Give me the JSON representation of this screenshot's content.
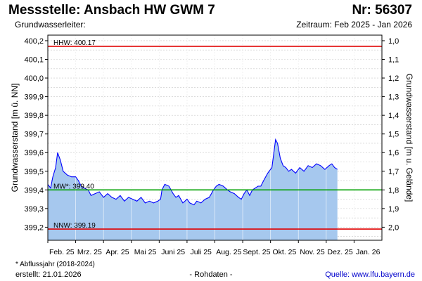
{
  "header": {
    "title": "Messstelle: Ansbach HW GWM 7",
    "number": "Nr: 56307",
    "aquifer": "Grundwasserleiter:",
    "period": "Zeitraum: Feb 2025 - Jan 2026"
  },
  "footer": {
    "footnote": "* Abflussjahr (2018-2024)",
    "created": "erstellt:  21.01.2026",
    "data_type": "- Rohdaten -",
    "source": "Quelle: www.lfu.bayern.de"
  },
  "colors": {
    "area_fill": "#a6c8ee",
    "line": "#0000ff",
    "hhw_line": "#e00000",
    "mw_line": "#00a000",
    "nnw_line": "#e00000",
    "grid": "#c8c8c8"
  },
  "chart_data": {
    "type": "area",
    "ylabel": "Grundwasserstand [m ü. NN]",
    "y2label": "Grundwasserstand [m u. Gelände]",
    "ylim": [
      399.13,
      400.23
    ],
    "y_ticks": [
      "399,2",
      "399,3",
      "399,4",
      "399,5",
      "399,6",
      "399,7",
      "399,8",
      "399,9",
      "400,0",
      "400,1",
      "400,2"
    ],
    "y_tick_values": [
      399.2,
      399.3,
      399.4,
      399.5,
      399.6,
      399.7,
      399.8,
      399.9,
      400.0,
      400.1,
      400.2
    ],
    "y2_ticks": [
      "2,0",
      "1,9",
      "1,8",
      "1,7",
      "1,6",
      "1,5",
      "1,4",
      "1,3",
      "1,2",
      "1,1",
      "1,0"
    ],
    "y2_tick_values": [
      399.2,
      399.3,
      399.4,
      399.5,
      399.6,
      399.7,
      399.8,
      399.9,
      400.0,
      400.1,
      400.2
    ],
    "x_range": [
      0,
      12
    ],
    "x_ticks": [
      "Feb. 25",
      "Mrz. 25",
      "Apr. 25",
      "Mai 25",
      "Juni 25",
      "Juli 25",
      "Aug. 25",
      "Sept. 25",
      "Okt. 25",
      "Nov. 25",
      "Dez. 25",
      "Jan. 26"
    ],
    "grid": true,
    "reference_lines": [
      {
        "label": "HHW: 400.17",
        "value": 400.17,
        "style": "hhw"
      },
      {
        "label": "MW*: 399.40",
        "value": 399.4,
        "style": "mw"
      },
      {
        "label": "NNW: 399.19",
        "value": 399.19,
        "style": "nnw"
      }
    ],
    "series": [
      {
        "points": [
          [
            0.0,
            399.43
          ],
          [
            0.1,
            399.41
          ],
          [
            0.18,
            399.47
          ],
          [
            0.28,
            399.52
          ],
          [
            0.35,
            399.6
          ],
          [
            0.45,
            399.56
          ],
          [
            0.55,
            399.5
          ],
          [
            0.7,
            399.48
          ],
          [
            0.85,
            399.47
          ],
          [
            1.0,
            399.47
          ],
          [
            1.1,
            399.45
          ],
          [
            1.2,
            399.42
          ],
          [
            1.3,
            399.41
          ],
          [
            1.45,
            399.4
          ],
          [
            1.55,
            399.37
          ],
          [
            1.7,
            399.38
          ],
          [
            1.85,
            399.39
          ],
          [
            2.0,
            399.36
          ],
          [
            2.15,
            399.38
          ],
          [
            2.3,
            399.36
          ],
          [
            2.45,
            399.35
          ],
          [
            2.6,
            399.37
          ],
          [
            2.75,
            399.34
          ],
          [
            2.9,
            399.36
          ],
          [
            3.05,
            399.35
          ],
          [
            3.2,
            399.34
          ],
          [
            3.35,
            399.36
          ],
          [
            3.5,
            399.33
          ],
          [
            3.65,
            399.34
          ],
          [
            3.8,
            399.33
          ],
          [
            3.95,
            399.34
          ],
          [
            4.05,
            399.35
          ],
          [
            4.1,
            399.4
          ],
          [
            4.2,
            399.43
          ],
          [
            4.35,
            399.42
          ],
          [
            4.5,
            399.38
          ],
          [
            4.6,
            399.36
          ],
          [
            4.7,
            399.37
          ],
          [
            4.85,
            399.33
          ],
          [
            5.0,
            399.35
          ],
          [
            5.1,
            399.33
          ],
          [
            5.25,
            399.32
          ],
          [
            5.35,
            399.34
          ],
          [
            5.5,
            399.33
          ],
          [
            5.65,
            399.35
          ],
          [
            5.8,
            399.36
          ],
          [
            5.95,
            399.4
          ],
          [
            6.05,
            399.42
          ],
          [
            6.15,
            399.43
          ],
          [
            6.3,
            399.42
          ],
          [
            6.45,
            399.4
          ],
          [
            6.55,
            399.39
          ],
          [
            6.7,
            399.38
          ],
          [
            6.85,
            399.36
          ],
          [
            6.95,
            399.35
          ],
          [
            7.05,
            399.38
          ],
          [
            7.15,
            399.4
          ],
          [
            7.25,
            399.37
          ],
          [
            7.35,
            399.4
          ],
          [
            7.45,
            399.41
          ],
          [
            7.55,
            399.42
          ],
          [
            7.65,
            399.42
          ],
          [
            7.75,
            399.45
          ],
          [
            7.9,
            399.49
          ],
          [
            8.05,
            399.52
          ],
          [
            8.12,
            399.6
          ],
          [
            8.18,
            399.67
          ],
          [
            8.25,
            399.65
          ],
          [
            8.35,
            399.57
          ],
          [
            8.45,
            399.53
          ],
          [
            8.55,
            399.52
          ],
          [
            8.65,
            399.5
          ],
          [
            8.75,
            399.51
          ],
          [
            8.9,
            399.49
          ],
          [
            9.05,
            399.52
          ],
          [
            9.2,
            399.5
          ],
          [
            9.35,
            399.53
          ],
          [
            9.5,
            399.52
          ],
          [
            9.65,
            399.54
          ],
          [
            9.8,
            399.53
          ],
          [
            9.95,
            399.51
          ],
          [
            10.1,
            399.53
          ],
          [
            10.2,
            399.54
          ],
          [
            10.3,
            399.52
          ],
          [
            10.4,
            399.51
          ]
        ]
      }
    ]
  }
}
